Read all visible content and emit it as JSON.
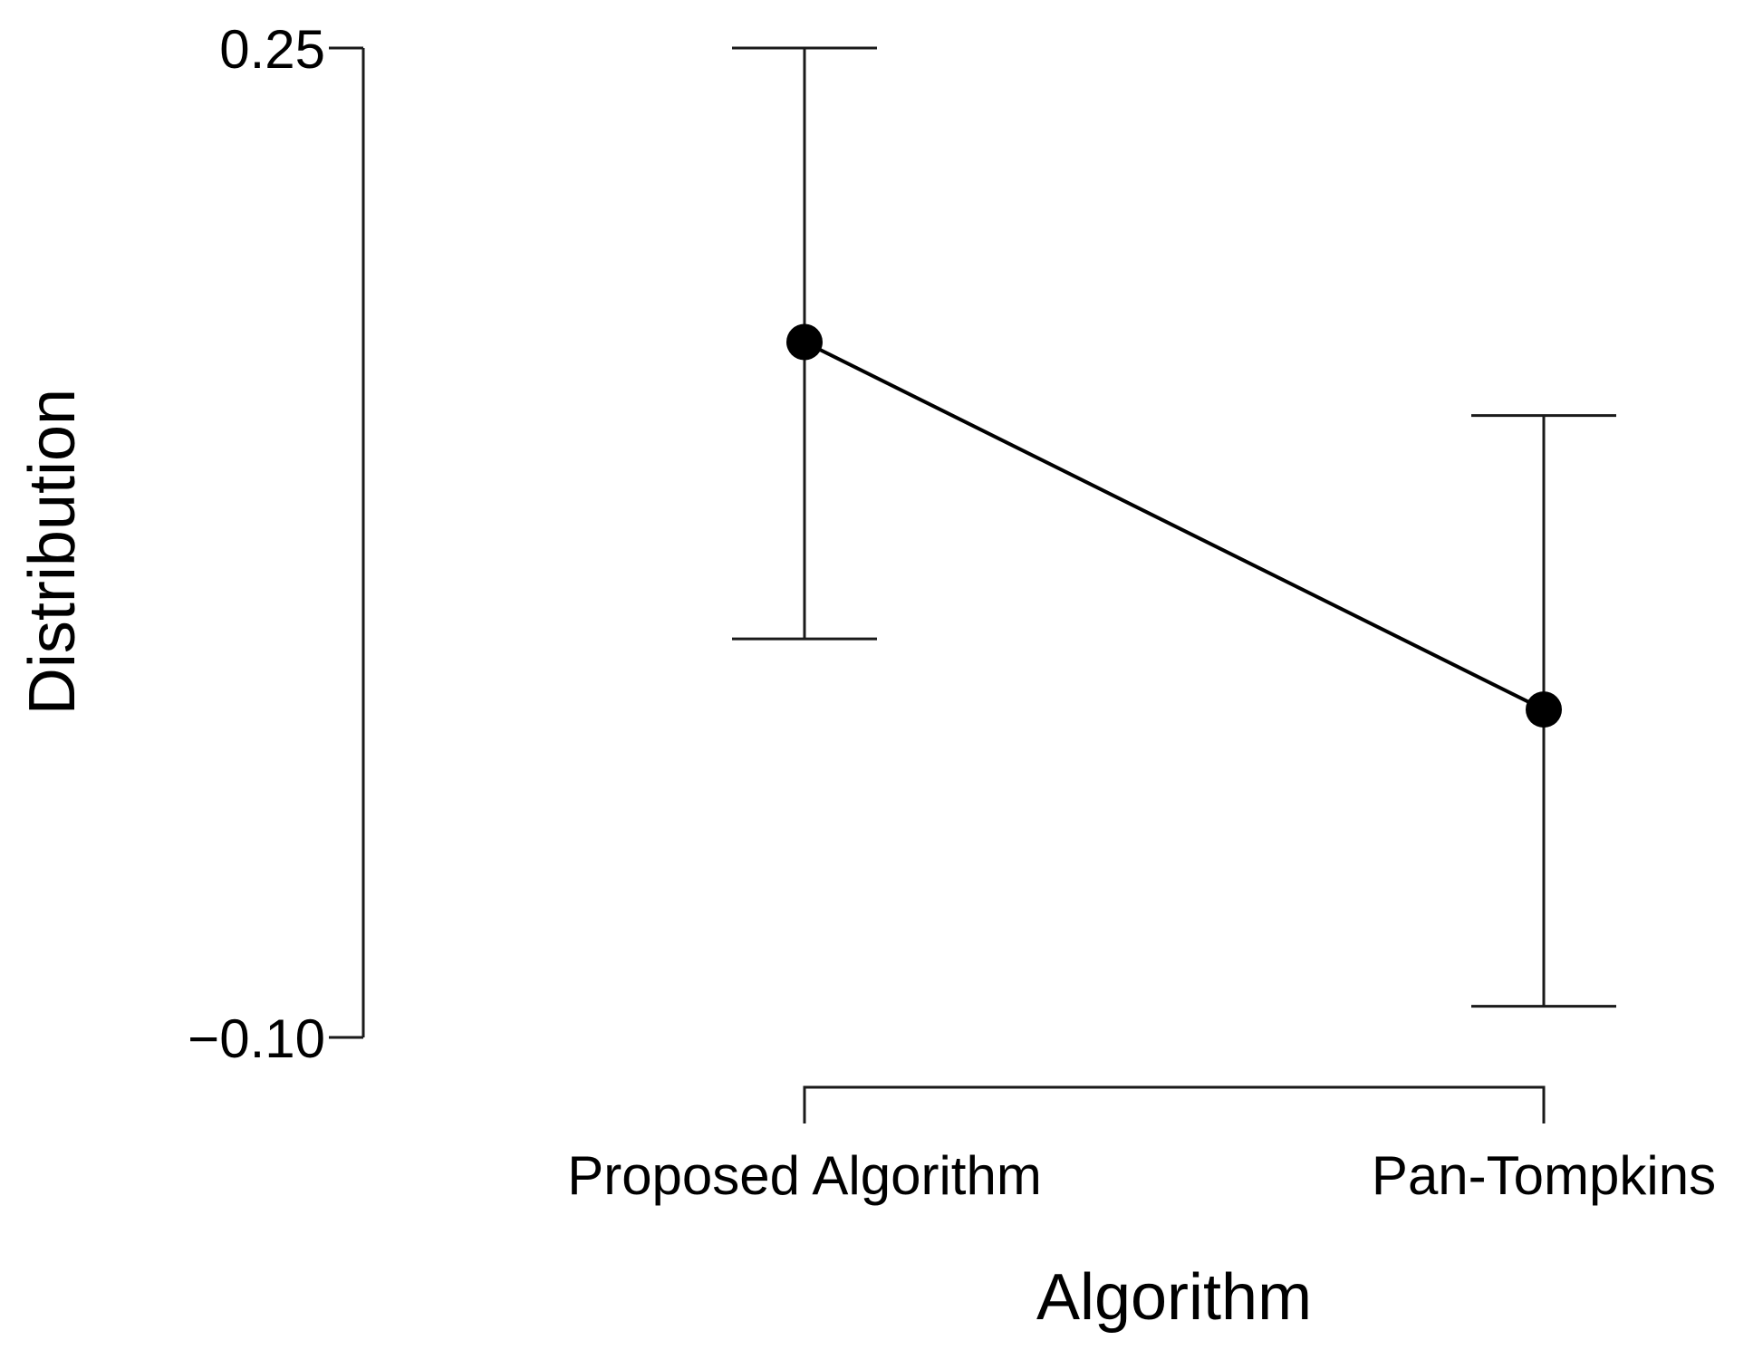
{
  "chart_data": {
    "type": "line",
    "title": "",
    "xlabel": "Algorithm",
    "ylabel": "Distribution",
    "categories": [
      "Proposed Algorithm",
      "Pan-Tompkins"
    ],
    "series": [
      {
        "values": [
          0.146,
          0.016
        ],
        "error_upper": [
          0.25,
          0.12
        ],
        "error_lower": [
          0.041,
          -0.089
        ]
      }
    ],
    "yticks": [
      0.25,
      -0.1
    ],
    "ytick_labels": [
      "0.25",
      "−0.10"
    ],
    "ylim": [
      -0.1,
      0.25
    ],
    "grid": false,
    "legend": "none"
  }
}
